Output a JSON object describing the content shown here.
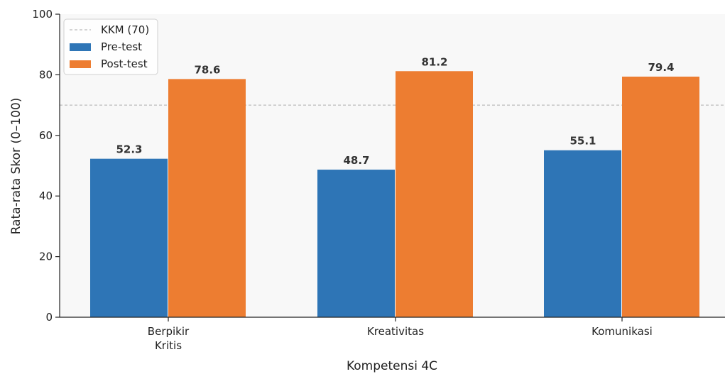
{
  "chart_data": {
    "type": "bar",
    "categories": [
      [
        "Berpikir",
        "Kritis"
      ],
      [
        "Kreativitas"
      ],
      [
        "Komunikasi"
      ]
    ],
    "series": [
      {
        "name": "Pre-test",
        "values": [
          52.3,
          48.7,
          55.1
        ],
        "color": "#2e75b6"
      },
      {
        "name": "Post-test",
        "values": [
          78.6,
          81.2,
          79.4
        ],
        "color": "#ed7d31"
      }
    ],
    "data_labels": {
      "Pre-test": [
        "52.3",
        "48.7",
        "55.1"
      ],
      "Post-test": [
        "78.6",
        "81.2",
        "79.4"
      ]
    },
    "reference_line": {
      "label": "KKM (70)",
      "value": 70,
      "color": "#bbbbbb",
      "style": "dashed"
    },
    "xlabel": "Kompetensi 4C",
    "ylabel": "Rata-rata Skor (0–100)",
    "ylim": [
      0,
      100
    ],
    "yticks": [
      "0",
      "20",
      "40",
      "60",
      "80",
      "100"
    ],
    "grid": false,
    "legend_position": "top-left",
    "plot_background": "#f8f8f8"
  }
}
